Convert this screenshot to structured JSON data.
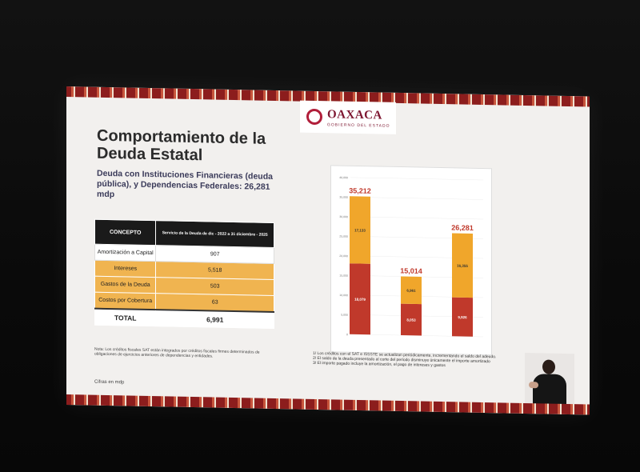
{
  "slide": {
    "logo_text": "OAXACA",
    "logo_sub": "GOBIERNO DEL ESTADO",
    "title": "Comportamiento de la Deuda Estatal",
    "subtitle": "Deuda con Instituciones Financieras (deuda pública), y Dependencias Federales: 26,281 mdp",
    "table": {
      "col1": "CONCEPTO",
      "col2": "Servicio de la Deuda de dic - 2022 a 31 diciembre - 2025",
      "rows": [
        {
          "concept": "Amortización a Capital",
          "value": "907"
        },
        {
          "concept": "Intereses",
          "value": "5,518"
        },
        {
          "concept": "Gastos de la Deuda",
          "value": "503"
        },
        {
          "concept": "Costos por Cobertura",
          "value": "63"
        }
      ],
      "total_label": "TOTAL",
      "total_value": "6,991"
    },
    "note": "Nota: Los créditos fiscales SAT están integrados por créditos fiscales firmes determinados de obligaciones de ejercicios anteriores de dependencias y entidades.",
    "cifras": "Cifras en mdp",
    "footnotes": [
      "1/ Los créditos con el SAT e ISSSTE se actualizan periódicamente, incrementando el saldo del adeudo.",
      "2/ El saldo de la deuda presentado al corte del periodo disminuye únicamente el importe amortizado",
      "3/ El importe pagado incluye la amortización, el pago de intereses y gastos"
    ]
  },
  "chart_data": {
    "type": "bar",
    "stacked": true,
    "ylim": [
      0,
      40000
    ],
    "y_ticks": [
      "0",
      "5,000",
      "10,000",
      "15,000",
      "20,000",
      "25,000",
      "30,000",
      "35,000",
      "40,000"
    ],
    "categories": [
      "",
      "",
      ""
    ],
    "totals": [
      "35,212",
      "15,014",
      "26,281"
    ],
    "series": [
      {
        "name": "",
        "color": "#c0392b",
        "values": [
          18079,
          8053,
          9926
        ],
        "labels": [
          "18,079",
          "8,053",
          "9,926"
        ]
      },
      {
        "name": "",
        "color": "#f0a62b",
        "values": [
          17133,
          6961,
          16355
        ],
        "labels": [
          "17,133",
          "6,961",
          "16,355"
        ]
      }
    ]
  }
}
